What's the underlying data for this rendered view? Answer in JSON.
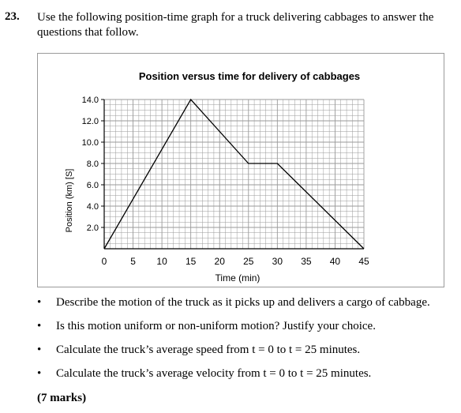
{
  "question": {
    "number": "23.",
    "text": "Use the following position-time graph for a truck delivering cabbages to answer the questions that follow."
  },
  "bullets": [
    "Describe the motion of the truck as it picks up and delivers a cargo of cabbage.",
    "Is this motion uniform or non-uniform motion? Justify your choice.",
    "Calculate the truck’s average speed from t = 0 to t = 25 minutes.",
    "Calculate the truck’s average velocity from t = 0 to t = 25 minutes."
  ],
  "bullet_symbol": "•",
  "marks": "(7 marks)",
  "chart_data": {
    "type": "line",
    "title": "Position versus time for delivery of cabbages",
    "xlabel": "Time (min)",
    "ylabel": "Position (km) [S]",
    "xlim": [
      0,
      45
    ],
    "ylim": [
      0,
      14
    ],
    "xticks": [
      0,
      5,
      10,
      15,
      20,
      25,
      30,
      35,
      40,
      45
    ],
    "yticks": [
      2.0,
      4.0,
      6.0,
      8.0,
      10.0,
      12.0,
      14.0
    ],
    "x": [
      0,
      15,
      25,
      30,
      45
    ],
    "y": [
      0,
      14,
      8,
      8,
      0
    ],
    "grid": true,
    "line_color": "#000000",
    "grid_color": "#9a9a9a"
  }
}
